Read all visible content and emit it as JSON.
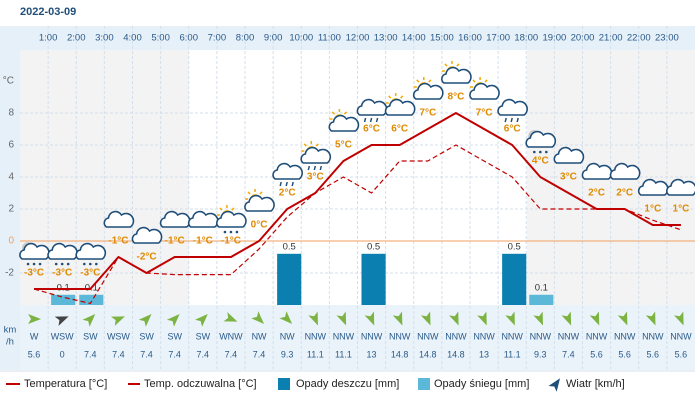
{
  "date": "2022-03-09",
  "chart_data": {
    "type": "weather",
    "hours": [
      "1:00",
      "2:00",
      "3:00",
      "4:00",
      "5:00",
      "6:00",
      "7:00",
      "8:00",
      "9:00",
      "10:00",
      "11:00",
      "12:00",
      "13:00",
      "14:00",
      "15:00",
      "16:00",
      "17:00",
      "18:00",
      "19:00",
      "20:00",
      "21:00",
      "22:00",
      "23:00"
    ],
    "y_unit": "°C",
    "ylim": [
      -4,
      12
    ],
    "yticks": [
      -2,
      0,
      2,
      4,
      6,
      8
    ],
    "y2lim": [
      0,
      2.5
    ],
    "temperature": {
      "name": "Temperatura [°C]",
      "color": "#c00000",
      "values": [
        -3,
        -3,
        -3,
        -1,
        -2,
        -1,
        -1,
        -1,
        0,
        2,
        3,
        5,
        6,
        6,
        7,
        8,
        7,
        6,
        4,
        3,
        2,
        2,
        1,
        1
      ],
      "value_labels": [
        "-3°C",
        "-3°C",
        "-3°C",
        "-1°C",
        "-2°C",
        "-1°C",
        "-1°C",
        "-1°C",
        "0°C",
        "2°C",
        "3°C",
        "5°C",
        "6°C",
        "6°C",
        "7°C",
        "8°C",
        "7°C",
        "6°C",
        "4°C",
        "3°C",
        "2°C",
        "2°C",
        "1°C",
        "1°C"
      ]
    },
    "feels_like": {
      "name": "Temp. odczuwalna [°C]",
      "color": "#c00000",
      "values": [
        -3,
        -3.5,
        -3.9,
        -1,
        -2,
        -2.1,
        -2.1,
        -2.1,
        -0.5,
        1.5,
        3,
        4,
        3,
        5,
        5,
        6,
        5,
        4,
        2,
        2,
        2,
        2,
        1.3,
        0.7
      ]
    },
    "rain": {
      "name": "Opady deszczu [mm]",
      "color": "#0a7fb0",
      "values": [
        0,
        0,
        0,
        0,
        0,
        0,
        0,
        0,
        0,
        0.5,
        0,
        0,
        0.5,
        0,
        0,
        0,
        0,
        0.5,
        0,
        0,
        0,
        0,
        0,
        0
      ]
    },
    "snow": {
      "name": "Opady śniegu [mm]",
      "color": "#5bb8d8",
      "values": [
        0,
        0.1,
        0.1,
        0,
        0,
        0,
        0,
        0,
        0,
        0,
        0,
        0,
        0,
        0,
        0,
        0,
        0,
        0,
        0.1,
        0,
        0,
        0,
        0,
        0
      ]
    },
    "wind": {
      "name": "Wiatr [km/h]",
      "unit_lines": [
        "km",
        "/h"
      ],
      "directions": [
        "W",
        "WSW",
        "SW",
        "WSW",
        "SW",
        "SW",
        "SW",
        "WNW",
        "NW",
        "NW",
        "NNW",
        "NNW",
        "NNW",
        "NNW",
        "NNW",
        "NNW",
        "NNW",
        "NNW",
        "NNW",
        "NNW",
        "NNW",
        "NNW",
        "NNW",
        "NNW"
      ],
      "speeds": [
        5.6,
        0,
        7.4,
        7.4,
        7.4,
        7.4,
        7.4,
        7.4,
        7.4,
        9.3,
        11.1,
        11.1,
        13,
        14.8,
        14.8,
        14.8,
        13,
        11.1,
        9.3,
        7.4,
        5.6,
        5.6,
        5.6,
        5.6
      ]
    }
  }
}
